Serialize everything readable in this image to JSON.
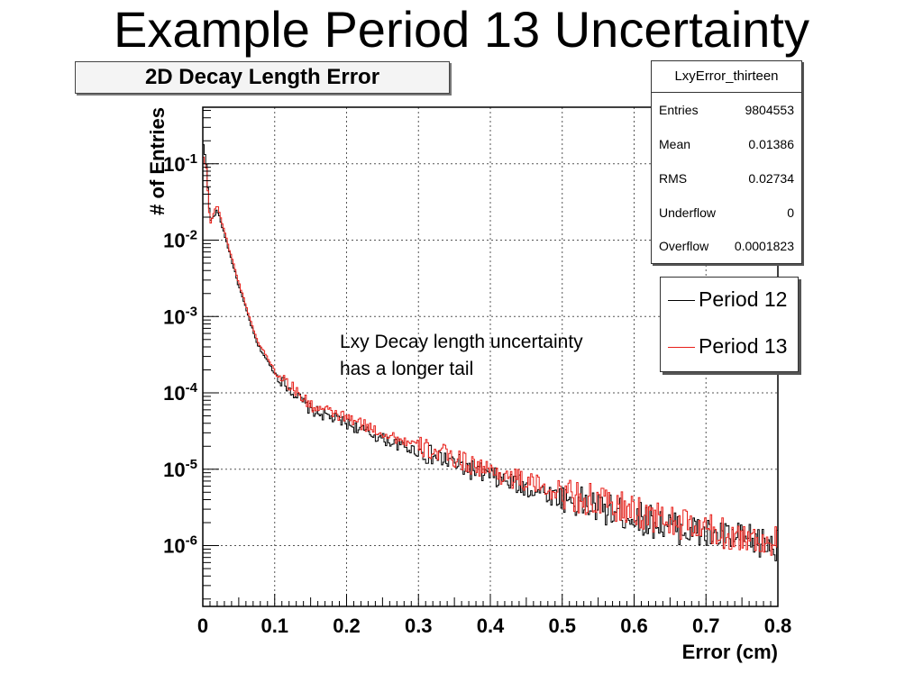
{
  "slide": {
    "title": "Example Period 13 Uncertainty"
  },
  "histogram_title": "2D Decay Length Error",
  "annotation": {
    "line1": "Lxy Decay length uncertainty",
    "line2": "has a longer tail"
  },
  "stats": {
    "name": "LxyError_thirteen",
    "rows": [
      {
        "label": "Entries",
        "value": "9804553"
      },
      {
        "label": "Mean",
        "value": "0.01386"
      },
      {
        "label": "RMS",
        "value": "0.02734"
      },
      {
        "label": "Underflow",
        "value": "0"
      },
      {
        "label": "Overflow",
        "value": "0.0001823"
      }
    ]
  },
  "legend": [
    {
      "label": "Period 12",
      "color": "#000000"
    },
    {
      "label": "Period 13",
      "color": "#e8201a"
    }
  ],
  "chart_data": {
    "type": "line",
    "subtype": "step-histogram",
    "title": "2D Decay Length Error",
    "xlabel": "Error (cm)",
    "ylabel": "# of Entries",
    "xlim": [
      0,
      0.8
    ],
    "ylim": [
      1.6e-07,
      0.55
    ],
    "yscale": "log",
    "grid": true,
    "x_ticks": [
      "0",
      "0.1",
      "0.2",
      "0.3",
      "0.4",
      "0.5",
      "0.6",
      "0.7",
      "0.8"
    ],
    "y_ticks": [
      {
        "value": 0.1,
        "base": "10",
        "exp": "-1"
      },
      {
        "value": 0.01,
        "base": "10",
        "exp": "-2"
      },
      {
        "value": 0.001,
        "base": "10",
        "exp": "-3"
      },
      {
        "value": 0.0001,
        "base": "10",
        "exp": "-4"
      },
      {
        "value": 1e-05,
        "base": "10",
        "exp": "-5"
      },
      {
        "value": 1e-06,
        "base": "10",
        "exp": "-6"
      }
    ],
    "series": [
      {
        "name": "Period 12",
        "color": "#000000",
        "x": [
          0.0,
          0.005,
          0.01,
          0.015,
          0.02,
          0.03,
          0.05,
          0.075,
          0.1,
          0.15,
          0.2,
          0.25,
          0.3,
          0.35,
          0.4,
          0.45,
          0.5,
          0.55,
          0.6,
          0.65,
          0.7,
          0.75,
          0.8
        ],
        "y": [
          0.2,
          0.1,
          0.018,
          0.02,
          0.025,
          0.012,
          0.0025,
          0.00045,
          0.00018,
          6e-05,
          4e-05,
          2.5e-05,
          1.7e-05,
          1.2e-05,
          8e-06,
          5.8e-06,
          4.2e-06,
          3.1e-06,
          2.4e-06,
          1.8e-06,
          1.4e-06,
          1.2e-06,
          1e-06
        ]
      },
      {
        "name": "Period 13",
        "color": "#e8201a",
        "x": [
          0.0,
          0.005,
          0.01,
          0.015,
          0.02,
          0.03,
          0.05,
          0.075,
          0.1,
          0.15,
          0.2,
          0.25,
          0.3,
          0.35,
          0.4,
          0.45,
          0.5,
          0.55,
          0.6,
          0.65,
          0.7,
          0.75,
          0.8
        ],
        "y": [
          0.13,
          0.09,
          0.016,
          0.022,
          0.03,
          0.013,
          0.0028,
          0.0005,
          0.0002,
          6.8e-05,
          4.7e-05,
          3e-05,
          2e-05,
          1.4e-05,
          9.5e-06,
          6.8e-06,
          5e-06,
          3.7e-06,
          2.8e-06,
          2.1e-06,
          1.6e-06,
          1.3e-06,
          1.1e-06
        ]
      }
    ]
  }
}
